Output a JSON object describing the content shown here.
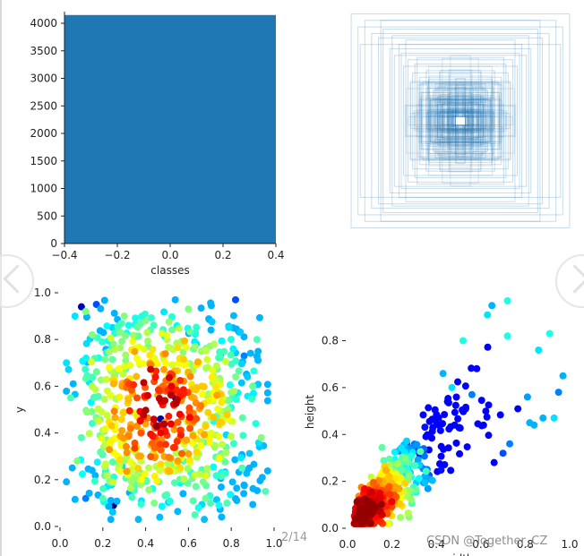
{
  "viewer": {
    "page_indicator": "2/14",
    "watermark": "CSDN @Together_CZ"
  },
  "colors": {
    "bar": "#1f77b4",
    "boxes": "#1f77b4",
    "axis": "#222222",
    "text": "#222222"
  },
  "chart_data": [
    {
      "id": "classes-hist",
      "type": "bar",
      "xlabel": "classes",
      "ylabel": "",
      "xlim": [
        -0.4,
        0.4
      ],
      "ylim": [
        0,
        4000
      ],
      "categories": [
        "0"
      ],
      "values": [
        4150
      ],
      "xticks": [
        "−0.4",
        "−0.2",
        "0.0",
        "0.2",
        "0.4"
      ],
      "yticks": [
        "0",
        "500",
        "1000",
        "1500",
        "2000",
        "2500",
        "3000",
        "3500",
        "4000"
      ]
    },
    {
      "id": "label-boxes",
      "type": "other",
      "description_kind": "overlaid bounding boxes centered at 0.5, 0.5 (width, height in fractions)",
      "boxes": [
        [
          0.96,
          0.98
        ],
        [
          0.9,
          0.86
        ],
        [
          0.84,
          0.92
        ],
        [
          0.78,
          0.8
        ],
        [
          0.72,
          0.76
        ],
        [
          0.68,
          0.84
        ],
        [
          0.62,
          0.66
        ],
        [
          0.58,
          0.6
        ],
        [
          0.54,
          0.7
        ],
        [
          0.5,
          0.5
        ],
        [
          0.46,
          0.56
        ],
        [
          0.42,
          0.44
        ],
        [
          0.4,
          0.52
        ],
        [
          0.36,
          0.4
        ],
        [
          0.33,
          0.36
        ],
        [
          0.3,
          0.46
        ],
        [
          0.27,
          0.3
        ],
        [
          0.24,
          0.28
        ],
        [
          0.22,
          0.34
        ],
        [
          0.2,
          0.22
        ],
        [
          0.18,
          0.24
        ],
        [
          0.16,
          0.2
        ],
        [
          0.14,
          0.18
        ],
        [
          0.12,
          0.16
        ],
        [
          0.1,
          0.14
        ],
        [
          0.09,
          0.12
        ],
        [
          0.08,
          0.1
        ],
        [
          0.07,
          0.09
        ],
        [
          0.06,
          0.08
        ],
        [
          0.05,
          0.06
        ],
        [
          0.88,
          0.7
        ],
        [
          0.7,
          0.92
        ],
        [
          0.6,
          0.78
        ],
        [
          0.52,
          0.62
        ],
        [
          0.48,
          0.74
        ],
        [
          0.44,
          0.36
        ],
        [
          0.38,
          0.58
        ],
        [
          0.34,
          0.26
        ],
        [
          0.28,
          0.38
        ],
        [
          0.26,
          0.2
        ]
      ]
    },
    {
      "id": "xy-scatter",
      "type": "scatter",
      "xlabel": "",
      "ylabel": "y",
      "xlim": [
        0,
        1
      ],
      "ylim": [
        0,
        1
      ],
      "xticks": [
        "0.0",
        "0.2",
        "0.4",
        "0.6",
        "0.8",
        "1.0"
      ],
      "yticks": [
        "0.0",
        "0.2",
        "0.4",
        "0.6",
        "0.8",
        "1.0"
      ],
      "colormap": "jet density",
      "points": [
        [
          0.1,
          0.94,
          0.05
        ],
        [
          0.17,
          0.95,
          0.2
        ],
        [
          0.25,
          0.09,
          0.02
        ],
        [
          0.54,
          0.55,
          0.05
        ],
        [
          0.47,
          0.46,
          0.03
        ],
        [
          0.82,
          0.97,
          0.2
        ],
        [
          0.12,
          0.92,
          0.5
        ],
        [
          0.07,
          0.9,
          0.35
        ],
        [
          0.92,
          0.8,
          0.45
        ],
        [
          0.86,
          0.73,
          0.25
        ],
        [
          0.12,
          0.12,
          0.25
        ],
        [
          0.48,
          0.52,
          0.85
        ],
        [
          0.45,
          0.43,
          0.98
        ],
        [
          0.52,
          0.6,
          0.9
        ],
        [
          0.41,
          0.56,
          0.92
        ],
        [
          0.56,
          0.48,
          0.88
        ],
        [
          0.39,
          0.47,
          0.85
        ],
        [
          0.44,
          0.62,
          0.8
        ],
        [
          0.5,
          0.39,
          0.82
        ],
        [
          0.58,
          0.57,
          0.78
        ],
        [
          0.36,
          0.55,
          0.8
        ],
        [
          0.47,
          0.33,
          0.78
        ],
        [
          0.62,
          0.45,
          0.75
        ],
        [
          0.33,
          0.42,
          0.76
        ],
        [
          0.29,
          0.6,
          0.72
        ],
        [
          0.6,
          0.66,
          0.7
        ],
        [
          0.42,
          0.7,
          0.7
        ],
        [
          0.55,
          0.28,
          0.72
        ],
        [
          0.65,
          0.7,
          0.62
        ],
        [
          0.27,
          0.3,
          0.6
        ],
        [
          0.7,
          0.36,
          0.62
        ],
        [
          0.23,
          0.68,
          0.62
        ],
        [
          0.76,
          0.55,
          0.58
        ],
        [
          0.18,
          0.45,
          0.58
        ],
        [
          0.35,
          0.76,
          0.6
        ],
        [
          0.5,
          0.8,
          0.55
        ],
        [
          0.63,
          0.22,
          0.58
        ],
        [
          0.38,
          0.2,
          0.62
        ],
        [
          0.8,
          0.45,
          0.55
        ],
        [
          0.15,
          0.6,
          0.55
        ],
        [
          0.22,
          0.22,
          0.55
        ],
        [
          0.72,
          0.78,
          0.55
        ],
        [
          0.08,
          0.28,
          0.5
        ],
        [
          0.94,
          0.38,
          0.5
        ],
        [
          0.6,
          0.93,
          0.5
        ],
        [
          0.3,
          0.9,
          0.5
        ],
        [
          0.05,
          0.55,
          0.45
        ],
        [
          0.9,
          0.6,
          0.48
        ],
        [
          0.44,
          0.1,
          0.5
        ],
        [
          0.68,
          0.12,
          0.48
        ],
        [
          0.15,
          0.82,
          0.5
        ],
        [
          0.85,
          0.25,
          0.45
        ],
        [
          0.2,
          0.12,
          0.45
        ],
        [
          0.78,
          0.1,
          0.45
        ],
        [
          0.96,
          0.15,
          0.45
        ],
        [
          0.03,
          0.7,
          0.35
        ],
        [
          0.63,
          0.05,
          0.45
        ],
        [
          0.4,
          0.88,
          0.5
        ],
        [
          0.1,
          0.38,
          0.45
        ],
        [
          0.25,
          0.78,
          0.5
        ]
      ],
      "n_generated": 700
    },
    {
      "id": "wh-scatter",
      "type": "scatter",
      "xlabel": "width",
      "ylabel": "height",
      "xlim": [
        0,
        1
      ],
      "ylim": [
        0,
        0.97
      ],
      "xticks": [
        "0.0",
        "0.2",
        "0.4",
        "0.6",
        "0.8",
        "1.0"
      ],
      "yticks": [
        "0.0",
        "0.2",
        "0.4",
        "0.6",
        "0.8"
      ],
      "colormap": "jet density",
      "points": [
        [
          0.72,
          0.97,
          0.4
        ],
        [
          0.91,
          0.83,
          0.4
        ],
        [
          0.97,
          0.65,
          0.3
        ],
        [
          0.86,
          0.76,
          0.35
        ],
        [
          0.65,
          0.95,
          0.3
        ],
        [
          0.63,
          0.91,
          0.35
        ],
        [
          0.72,
          0.82,
          0.4
        ],
        [
          0.95,
          0.58,
          0.25
        ],
        [
          0.88,
          0.47,
          0.3
        ],
        [
          0.93,
          0.47,
          0.35
        ],
        [
          0.84,
          0.44,
          0.3
        ],
        [
          0.81,
          0.56,
          0.28
        ],
        [
          0.82,
          0.45,
          0.3
        ],
        [
          0.73,
          0.36,
          0.25
        ],
        [
          0.7,
          0.32,
          0.2
        ],
        [
          0.66,
          0.28,
          0.12
        ],
        [
          0.56,
          0.57,
          0.25
        ],
        [
          0.52,
          0.8,
          0.4
        ],
        [
          0.47,
          0.6,
          0.35
        ],
        [
          0.43,
          0.66,
          0.3
        ],
        [
          0.45,
          0.54,
          0.08
        ],
        [
          0.1,
          0.09,
          0.98
        ],
        [
          0.08,
          0.07,
          0.95
        ],
        [
          0.12,
          0.11,
          0.92
        ],
        [
          0.06,
          0.06,
          0.9
        ],
        [
          0.09,
          0.13,
          0.88
        ],
        [
          0.14,
          0.08,
          0.85
        ],
        [
          0.07,
          0.1,
          0.86
        ],
        [
          0.11,
          0.05,
          0.84
        ],
        [
          0.05,
          0.09,
          0.8
        ],
        [
          0.13,
          0.15,
          0.8
        ],
        [
          0.16,
          0.12,
          0.75
        ]
      ],
      "n_generated": 700
    }
  ]
}
